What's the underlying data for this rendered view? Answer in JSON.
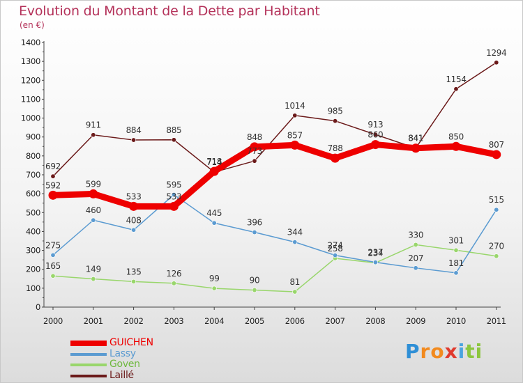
{
  "title": "Evolution du Montant de la Dette par Habitant",
  "unit": "(en €)",
  "logo": {
    "text": "Proxiti",
    "letters": [
      "P",
      "r",
      "o",
      "x",
      "i",
      "t",
      "i"
    ],
    "colors": [
      "#2f8fd6",
      "#f28a1e",
      "#f28a1e",
      "#e03a2e",
      "#4aa3df",
      "#8cc63f",
      "#8cc63f"
    ]
  },
  "chart_data": {
    "type": "line",
    "title": "Evolution du Montant de la Dette par Habitant",
    "ylabel": "(en €)",
    "xlabel": "",
    "x": [
      "2000",
      "2001",
      "2002",
      "2003",
      "2004",
      "2005",
      "2006",
      "2007",
      "2008",
      "2009",
      "2010",
      "2011"
    ],
    "ylim": [
      0,
      1400
    ],
    "yticks": [
      0,
      100,
      200,
      300,
      400,
      500,
      600,
      700,
      800,
      900,
      1000,
      1100,
      1200,
      1300,
      1400
    ],
    "grid": false,
    "legend_position": "bottom-left",
    "series": [
      {
        "name": "Laillé",
        "color": "#6b1a1a",
        "values": [
          692,
          911,
          884,
          885,
          714,
          773,
          1014,
          985,
          913,
          841,
          1154,
          1294
        ]
      },
      {
        "name": "Goven",
        "color": "#99d66c",
        "values": [
          165,
          149,
          135,
          126,
          99,
          90,
          81,
          258,
          234,
          330,
          301,
          270
        ]
      },
      {
        "name": "Lassy",
        "color": "#5b9bd1",
        "values": [
          275,
          460,
          408,
          595,
          445,
          396,
          344,
          274,
          237,
          207,
          181,
          515
        ]
      },
      {
        "name": "GUICHEN",
        "color": "#ee0000",
        "values": [
          592,
          599,
          533,
          533,
          718,
          848,
          857,
          788,
          860,
          841,
          850,
          807
        ]
      }
    ],
    "legend_order": [
      "GUICHEN",
      "Lassy",
      "Goven",
      "Laillé"
    ]
  }
}
